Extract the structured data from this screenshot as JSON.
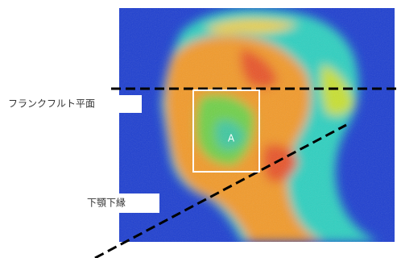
{
  "labels": {
    "frankfurt_plane": "フランクフルト平面",
    "mandible_lower_edge": "下顎下縁",
    "region": "A"
  }
}
